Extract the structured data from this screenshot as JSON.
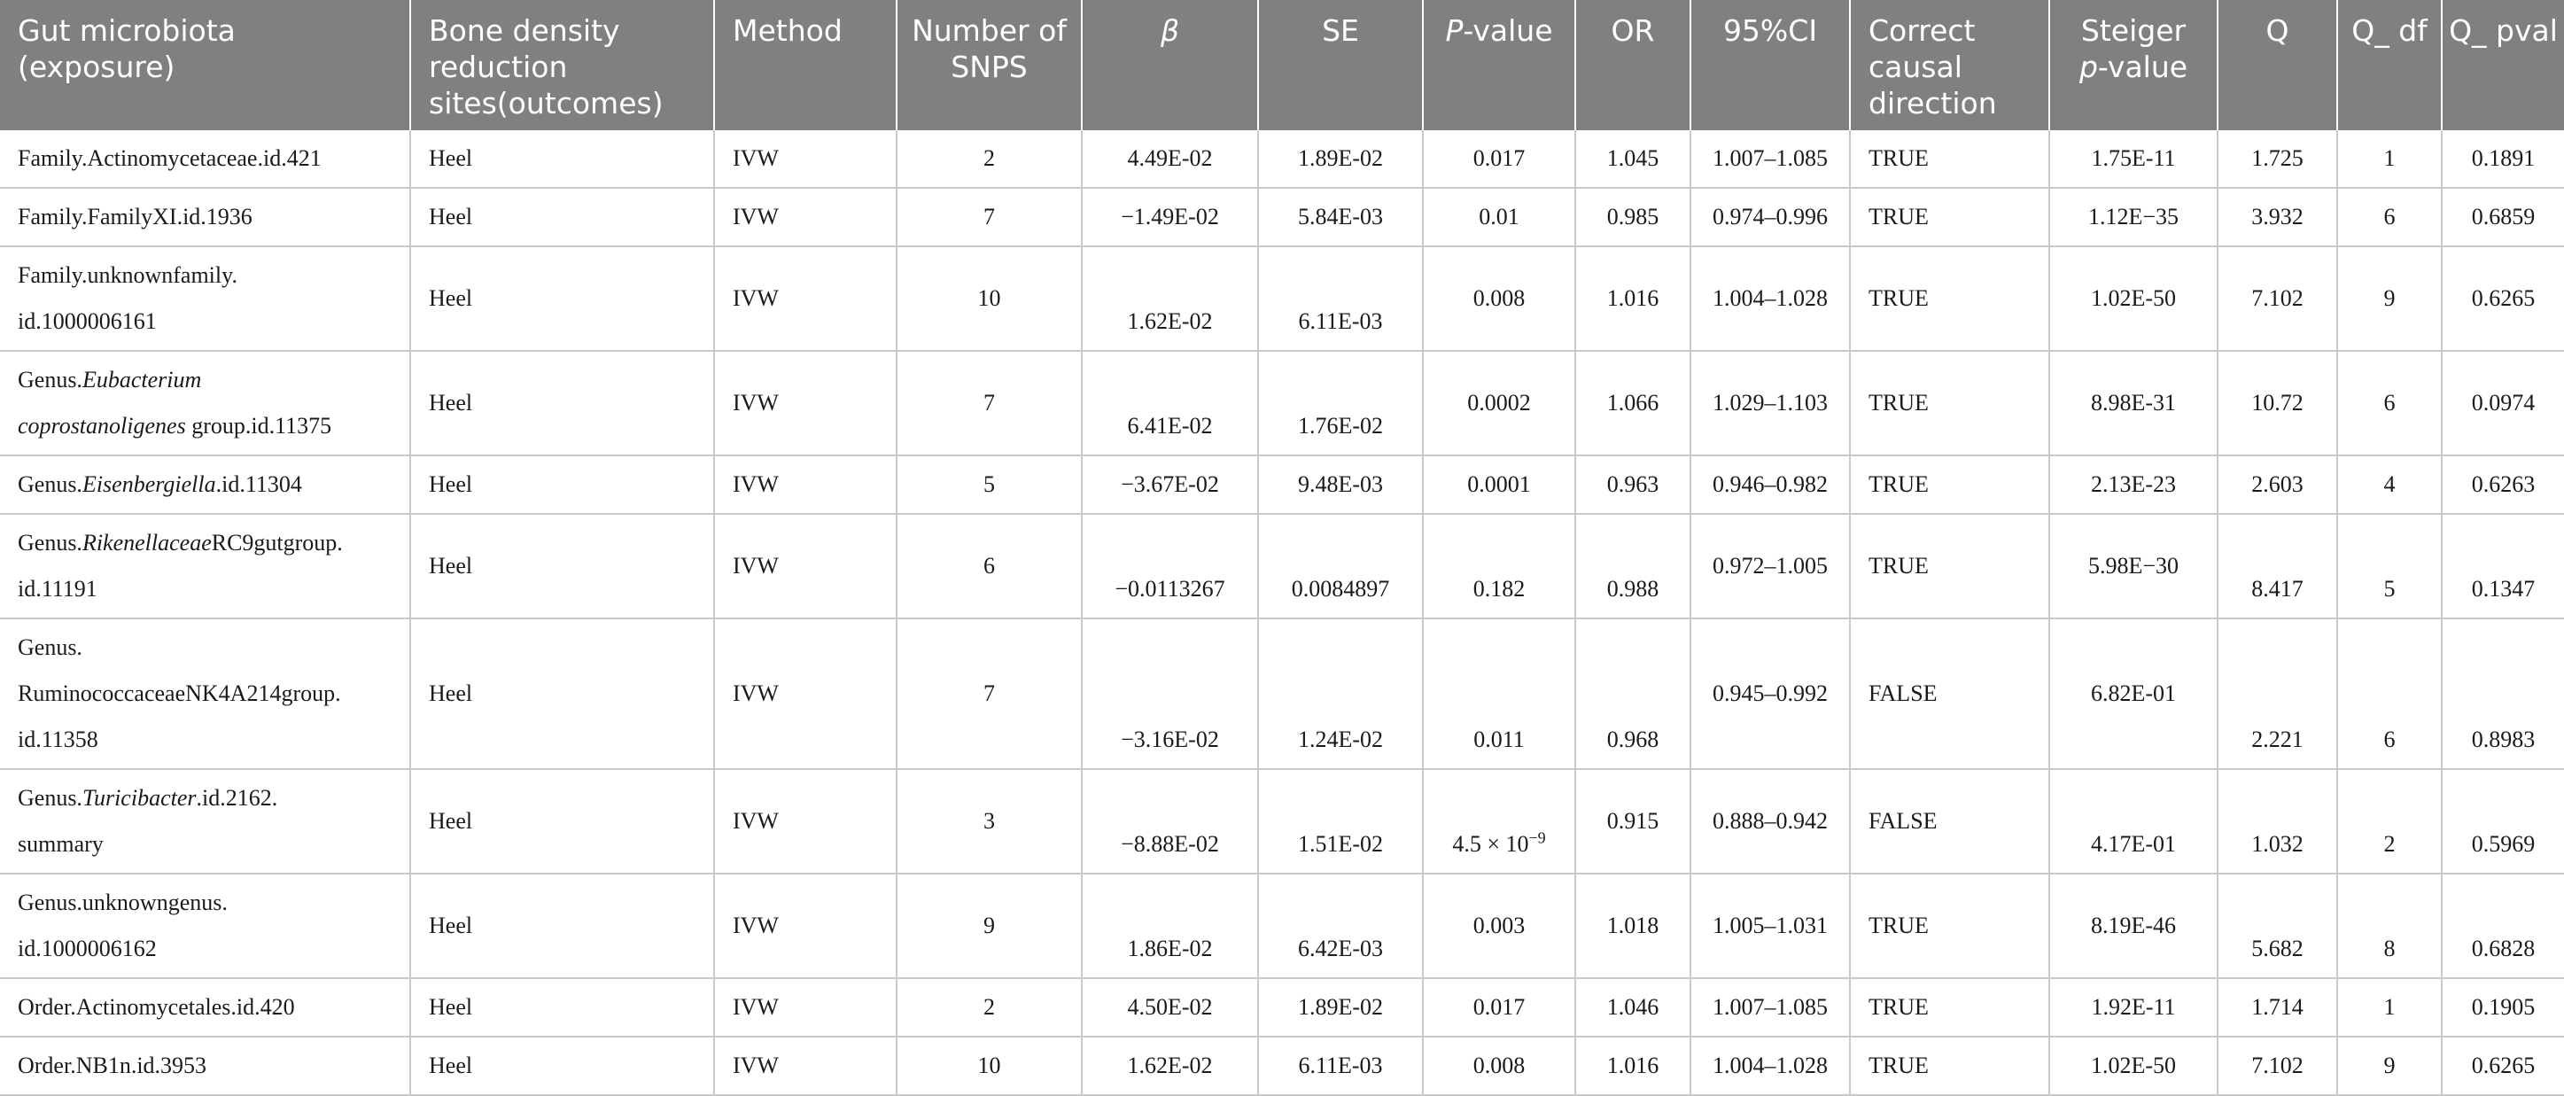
{
  "headers": {
    "exposure": "Gut microbiota (exposure)",
    "outcome": "Bone density reduction sites(outcomes)",
    "method": "Method",
    "snps": "Number of SNPS",
    "beta": "β",
    "se": "SE",
    "p_italic": "P",
    "p_suffix": "-value",
    "or": "OR",
    "ci": "95%CI",
    "direction": "Correct causal direction",
    "steiger_prefix": "Steiger",
    "steiger_italic": "p",
    "steiger_suffix": "-value",
    "q": "Q",
    "q_df": "Q_ df",
    "q_pval": "Q_ pval"
  },
  "rows": [
    {
      "exposure_a": "Family.Actinomycetaceae.id.421",
      "outcome": "Heel",
      "method": "IVW",
      "snps": "2",
      "beta": "4.49E-02",
      "se": "1.89E-02",
      "p": "0.017",
      "or": "1.045",
      "ci": "1.007–1.085",
      "direction": "TRUE",
      "steiger": "1.75E-11",
      "q": "1.725",
      "q_df": "1",
      "q_pval": "0.1891"
    },
    {
      "exposure_a": "Family.FamilyXI.id.1936",
      "outcome": "Heel",
      "method": "IVW",
      "snps": "7",
      "beta": "−1.49E-02",
      "se": "5.84E-03",
      "p": "0.01",
      "or": "0.985",
      "ci": "0.974–0.996",
      "direction": "TRUE",
      "steiger": "1.12E−35",
      "q": "3.932",
      "q_df": "6",
      "q_pval": "0.6859"
    },
    {
      "exposure_a": "Family.unknownfamily.",
      "exposure_b": "id.1000006161",
      "outcome": "Heel",
      "method": "IVW",
      "snps": "10",
      "beta": "1.62E-02",
      "se": "6.11E-03",
      "p": "0.008",
      "or": "1.016",
      "ci": "1.004–1.028",
      "direction": "TRUE",
      "steiger": "1.02E-50",
      "q": "7.102",
      "q_df": "9",
      "q_pval": "0.6265"
    },
    {
      "exposure_pre": "Genus.",
      "exposure_it1": "Eubacterium",
      "exposure_it2": "coprostanoligenes",
      "exposure_post": " group.id.11375",
      "outcome": "Heel",
      "method": "IVW",
      "snps": "7",
      "beta": "6.41E-02",
      "se": "1.76E-02",
      "p": "0.0002",
      "or": "1.066",
      "ci": "1.029–1.103",
      "direction": "TRUE",
      "steiger": "8.98E-31",
      "q": "10.72",
      "q_df": "6",
      "q_pval": "0.0974"
    },
    {
      "exposure_pre": "Genus.",
      "exposure_it1": "Eisenbergiella",
      "exposure_post": ".id.11304",
      "outcome": "Heel",
      "method": "IVW",
      "snps": "5",
      "beta": "−3.67E-02",
      "se": "9.48E-03",
      "p": "0.0001",
      "or": "0.963",
      "ci": "0.946–0.982",
      "direction": "TRUE",
      "steiger": "2.13E-23",
      "q": "2.603",
      "q_df": "4",
      "q_pval": "0.6263"
    },
    {
      "exposure_pre": "Genus.",
      "exposure_it1": "Rikenellaceae",
      "exposure_post": "RC9gutgroup.",
      "exposure_b": "id.11191",
      "outcome": "Heel",
      "method": "IVW",
      "snps": "6",
      "beta": "−0.0113267",
      "se": "0.0084897",
      "p": "0.182",
      "or": "0.988",
      "ci": "0.972–1.005",
      "direction": "TRUE",
      "steiger": "5.98E−30",
      "q": "8.417",
      "q_df": "5",
      "q_pval": "0.1347"
    },
    {
      "exposure_a": "Genus.",
      "exposure_b": "RuminococcaceaeNK4A214group.",
      "exposure_c": "id.11358",
      "outcome": "Heel",
      "method": "IVW",
      "snps": "7",
      "beta": "−3.16E-02",
      "se": "1.24E-02",
      "p": "0.011",
      "or": "0.968",
      "ci": "0.945–0.992",
      "direction": "FALSE",
      "steiger": "6.82E-01",
      "q": "2.221",
      "q_df": "6",
      "q_pval": "0.8983"
    },
    {
      "exposure_pre": "Genus.",
      "exposure_it1": "Turicibacter",
      "exposure_post": ".id.2162.",
      "exposure_b": "summary",
      "outcome": "Heel",
      "method": "IVW",
      "snps": "3",
      "beta": "−8.88E-02",
      "se": "1.51E-02",
      "p_base": "4.5 × 10",
      "p_exp": "−9",
      "or": "0.915",
      "ci": "0.888–0.942",
      "direction": "FALSE",
      "steiger": "4.17E-01",
      "q": "1.032",
      "q_df": "2",
      "q_pval": "0.5969"
    },
    {
      "exposure_a": "Genus.unknowngenus.",
      "exposure_b": "id.1000006162",
      "outcome": "Heel",
      "method": "IVW",
      "snps": "9",
      "beta": "1.86E-02",
      "se": "6.42E-03",
      "p": "0.003",
      "or": "1.018",
      "ci": "1.005–1.031",
      "direction": "TRUE",
      "steiger": "8.19E-46",
      "q": "5.682",
      "q_df": "8",
      "q_pval": "0.6828"
    },
    {
      "exposure_a": "Order.Actinomycetales.id.420",
      "outcome": "Heel",
      "method": "IVW",
      "snps": "2",
      "beta": "4.50E-02",
      "se": "1.89E-02",
      "p": "0.017",
      "or": "1.046",
      "ci": "1.007–1.085",
      "direction": "TRUE",
      "steiger": "1.92E-11",
      "q": "1.714",
      "q_df": "1",
      "q_pval": "0.1905"
    },
    {
      "exposure_a": "Order.NB1n.id.3953",
      "outcome": "Heel",
      "method": "IVW",
      "snps": "10",
      "beta": "1.62E-02",
      "se": "6.11E-03",
      "p": "0.008",
      "or": "1.016",
      "ci": "1.004–1.028",
      "direction": "TRUE",
      "steiger": "1.02E-50",
      "q": "7.102",
      "q_df": "9",
      "q_pval": "0.6265"
    }
  ]
}
